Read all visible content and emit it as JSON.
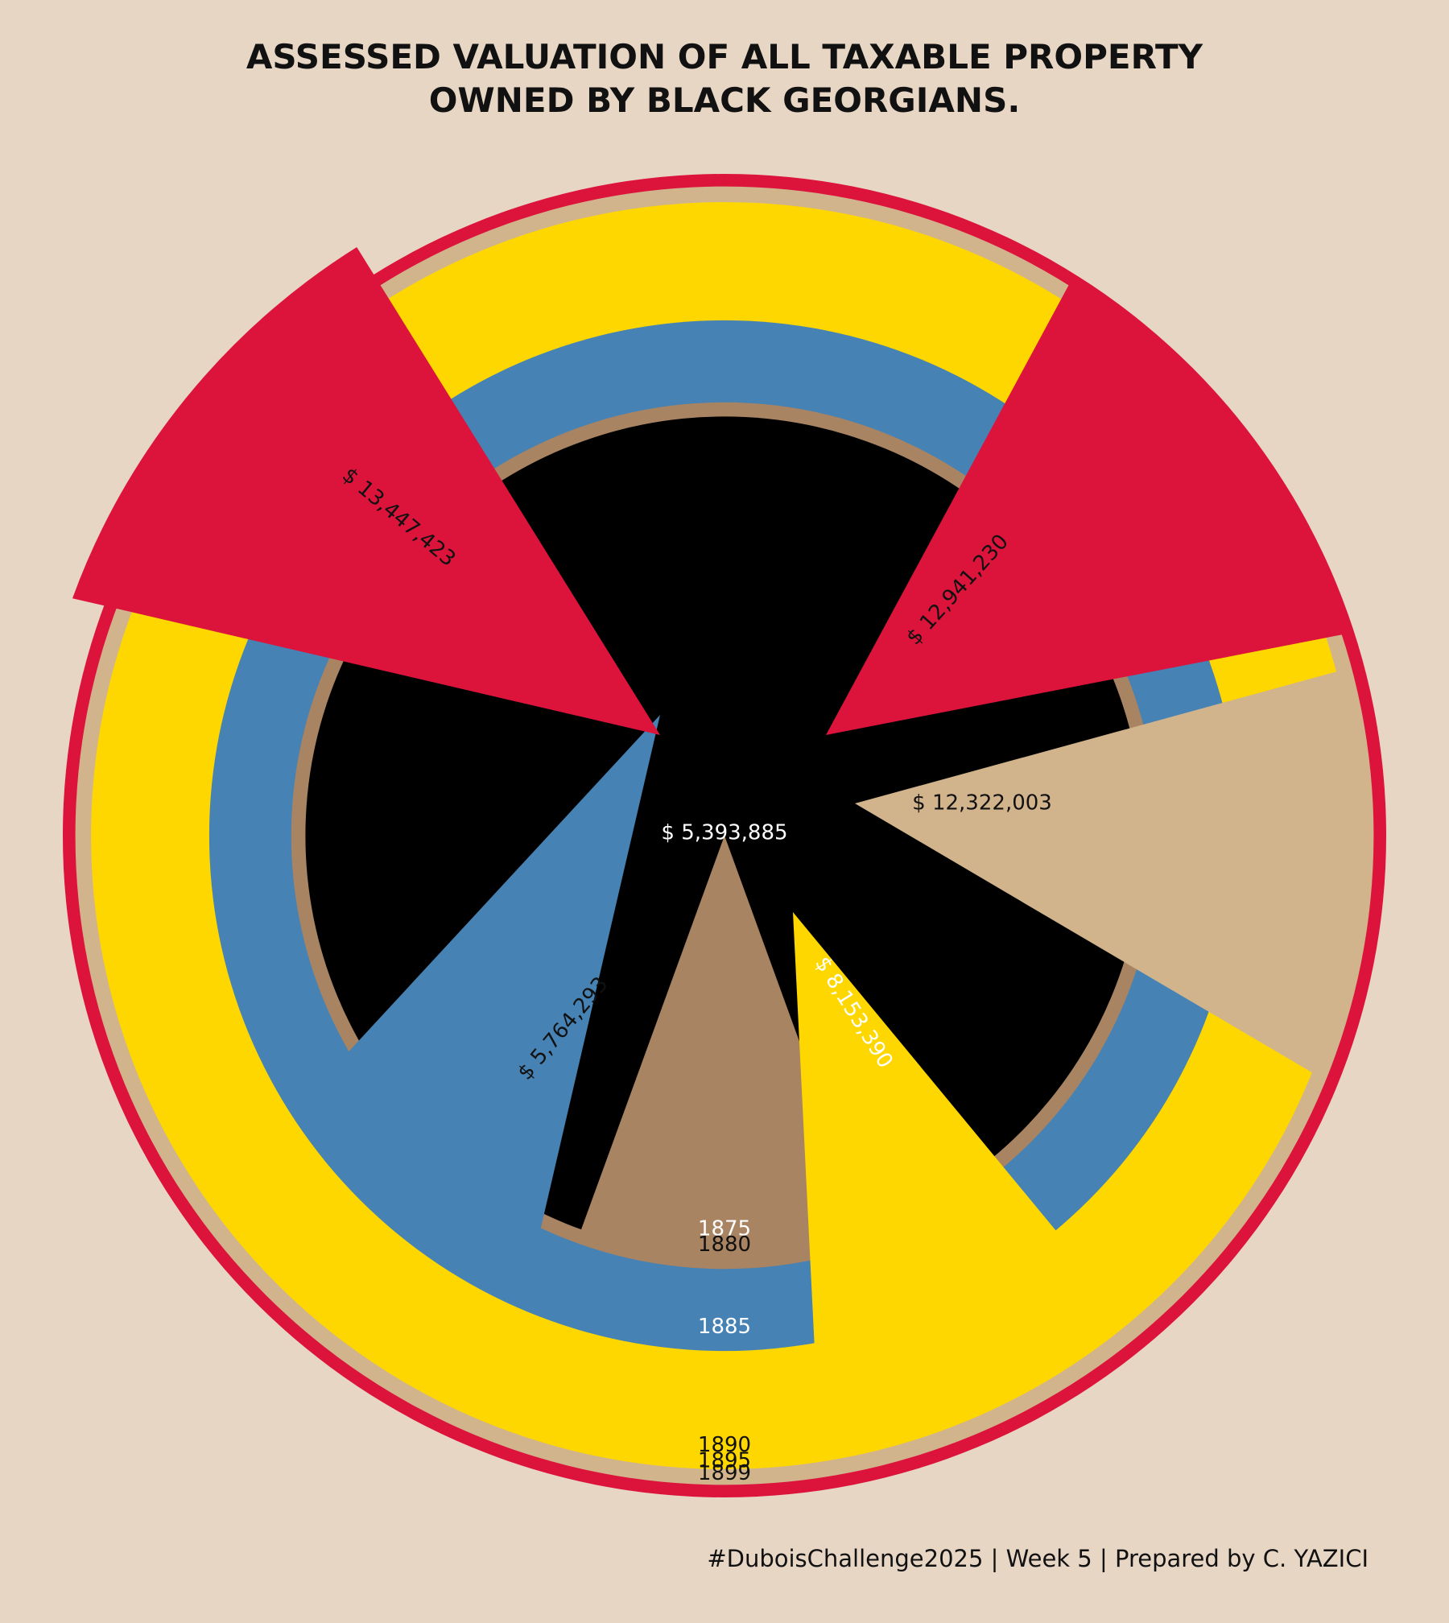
{
  "title": {
    "line1": "ASSESSED VALUATION OF ALL TAXABLE PROPERTY",
    "line2": "OWNED BY BLACK GEORGIANS."
  },
  "caption": "#DuboisChallenge2025 | Week 5 | Prepared by C. YAZICI",
  "chart_data": {
    "type": "polar-area",
    "title": "ASSESSED VALUATION OF ALL TAXABLE PROPERTY OWNED BY BLACK GEORGIANS.",
    "categories": [
      "1875",
      "1880",
      "1885",
      "1890",
      "1895",
      "1899"
    ],
    "values": [
      5393885,
      5764293,
      8153390,
      12322003,
      12941230,
      13447423
    ],
    "value_labels": [
      "$ 5,393,885",
      "$ 5,764,293",
      "$ 8,153,390",
      "$ 12,322,003",
      "$ 12,941,230",
      "$ 13,447,423"
    ],
    "colors": {
      "1875": "#000000",
      "1880": "#A98462",
      "1885": "#4682B4",
      "1890": "#FFD700",
      "1895": "#D2B48C",
      "1899": "#DC143C"
    },
    "label_colors": {
      "1875": "#FFFFFF",
      "1880": "#111111",
      "1885": "#FFFFFF",
      "1890": "#111111",
      "1895": "#111111",
      "1899": "#111111"
    },
    "background": "#E8D6C5"
  }
}
